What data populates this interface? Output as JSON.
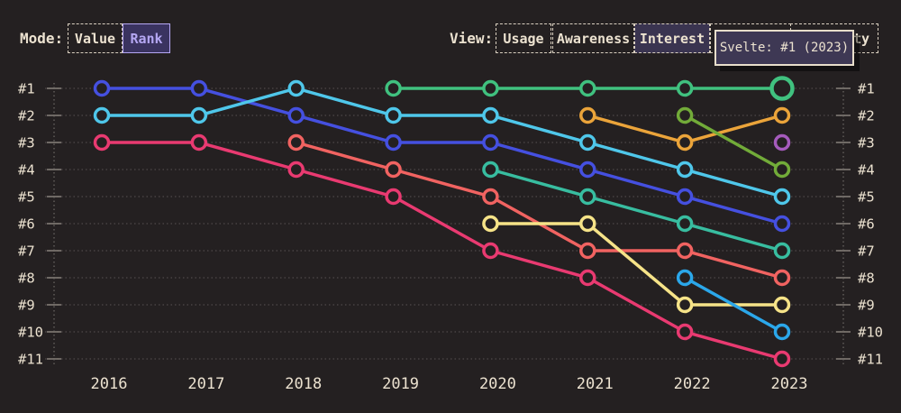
{
  "colors": {
    "background": "#242021",
    "text": "#ece2d0",
    "grid": "#4d4849",
    "axis": "#6f6a66",
    "tick": "#8e8881",
    "selected_mode_accent": "#b5a7f3",
    "selected_view_bg": "#3a3450",
    "tooltip_bg": "#3e3854",
    "tooltip_border": "#e8decb"
  },
  "toolbar": {
    "mode": {
      "label": "Mode:",
      "options": [
        {
          "label": "Value",
          "selected": false
        },
        {
          "label": "Rank",
          "selected": true
        }
      ]
    },
    "view": {
      "label": "View:",
      "options": [
        {
          "label": "Usage",
          "selected": false
        },
        {
          "label": "Awareness",
          "selected": false
        },
        {
          "label": "Interest",
          "selected": true
        },
        {
          "label": "",
          "selected": false
        },
        {
          "label": "ty",
          "selected": false
        }
      ]
    }
  },
  "tooltip": {
    "text": "Svelte: #1 (2023)"
  },
  "chart_data": {
    "type": "line",
    "subtype": "bump-rank-chart",
    "title": "",
    "x_labels": [
      "2016",
      "2017",
      "2018",
      "2019",
      "2020",
      "2021",
      "2022",
      "2023"
    ],
    "y_left_labels": [
      "#1",
      "#2",
      "#3",
      "#4",
      "#5",
      "#6",
      "#7",
      "#8",
      "#9",
      "#10",
      "#11"
    ],
    "y_right_labels": [
      "#1",
      "#2",
      "#3",
      "#4",
      "#5",
      "#6",
      "#7",
      "#8",
      "#9",
      "#10",
      "#11"
    ],
    "ylim": [
      1,
      11
    ],
    "y_inverted": true,
    "grid": "dotted-horizontal",
    "legend": "none",
    "series": [
      {
        "name": null,
        "color": "#4550e0",
        "ranks": [
          1,
          1,
          2,
          3,
          3,
          4,
          5,
          6
        ]
      },
      {
        "name": null,
        "color": "#4fc7ea",
        "ranks": [
          2,
          2,
          1,
          2,
          2,
          3,
          4,
          5
        ]
      },
      {
        "name": null,
        "color": "#e93a71",
        "ranks": [
          3,
          3,
          4,
          5,
          7,
          8,
          10,
          11
        ]
      },
      {
        "name": null,
        "color": "#f16361",
        "ranks": [
          null,
          null,
          3,
          4,
          5,
          7,
          7,
          8
        ]
      },
      {
        "name": "Svelte",
        "color": "#40c17f",
        "ranks": [
          null,
          null,
          null,
          1,
          1,
          1,
          1,
          1
        ],
        "highlight_last": true
      },
      {
        "name": null,
        "color": "#38bda0",
        "ranks": [
          null,
          null,
          null,
          null,
          4,
          5,
          6,
          7
        ]
      },
      {
        "name": null,
        "color": "#f6e388",
        "ranks": [
          null,
          null,
          null,
          null,
          6,
          6,
          9,
          9
        ]
      },
      {
        "name": null,
        "color": "#eba43a",
        "ranks": [
          null,
          null,
          null,
          null,
          null,
          2,
          3,
          2
        ]
      },
      {
        "name": null,
        "color": "#72ab39",
        "ranks": [
          null,
          null,
          null,
          null,
          null,
          null,
          2,
          4
        ]
      },
      {
        "name": null,
        "color": "#2ba7ea",
        "ranks": [
          null,
          null,
          null,
          null,
          null,
          null,
          8,
          10
        ]
      },
      {
        "name": null,
        "color": "#a55bbc",
        "ranks": [
          null,
          null,
          null,
          null,
          null,
          null,
          null,
          3
        ]
      }
    ],
    "highlighted_point": {
      "series": "Svelte",
      "rank_label": "#1",
      "year": "2023"
    }
  }
}
